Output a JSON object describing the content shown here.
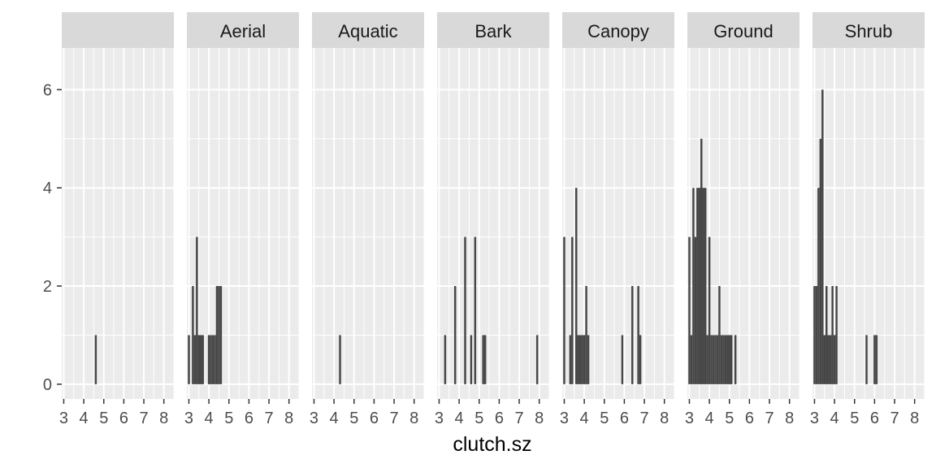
{
  "chart_data": {
    "type": "bar",
    "subtype": "faceted-histogram",
    "title": "",
    "xlabel": "clutch.sz",
    "ylabel": "",
    "xlim": [
      2.9,
      8.5
    ],
    "ylim": [
      -0.3,
      6.85
    ],
    "x_ticks": [
      3,
      4,
      5,
      6,
      7,
      8
    ],
    "y_ticks": [
      0,
      2,
      4,
      6
    ],
    "bin_width": 0.1,
    "bar_color": "#474747",
    "panel_background": "#ebebeb",
    "strip_background": "#d9d9d9",
    "grid": true,
    "legend": "none",
    "facets": [
      {
        "label": "",
        "bars": [
          {
            "x": 4.6,
            "count": 1
          }
        ]
      },
      {
        "label": "Aerial",
        "bars": [
          {
            "x": 3.0,
            "count": 1
          },
          {
            "x": 3.2,
            "count": 2
          },
          {
            "x": 3.3,
            "count": 1
          },
          {
            "x": 3.4,
            "count": 3
          },
          {
            "x": 3.5,
            "count": 1
          },
          {
            "x": 3.6,
            "count": 1
          },
          {
            "x": 3.7,
            "count": 1
          },
          {
            "x": 4.0,
            "count": 1
          },
          {
            "x": 4.1,
            "count": 1
          },
          {
            "x": 4.2,
            "count": 1
          },
          {
            "x": 4.3,
            "count": 1
          },
          {
            "x": 4.4,
            "count": 2
          },
          {
            "x": 4.5,
            "count": 2
          },
          {
            "x": 4.6,
            "count": 2
          }
        ]
      },
      {
        "label": "Aquatic",
        "bars": [
          {
            "x": 4.3,
            "count": 1
          }
        ]
      },
      {
        "label": "Bark",
        "bars": [
          {
            "x": 3.3,
            "count": 1
          },
          {
            "x": 3.8,
            "count": 2
          },
          {
            "x": 4.3,
            "count": 3
          },
          {
            "x": 4.6,
            "count": 1
          },
          {
            "x": 4.8,
            "count": 3
          },
          {
            "x": 5.2,
            "count": 1
          },
          {
            "x": 5.3,
            "count": 1
          },
          {
            "x": 7.9,
            "count": 1
          }
        ]
      },
      {
        "label": "Canopy",
        "bars": [
          {
            "x": 3.0,
            "count": 3
          },
          {
            "x": 3.3,
            "count": 1
          },
          {
            "x": 3.4,
            "count": 3
          },
          {
            "x": 3.6,
            "count": 4
          },
          {
            "x": 3.7,
            "count": 1
          },
          {
            "x": 3.8,
            "count": 1
          },
          {
            "x": 3.9,
            "count": 1
          },
          {
            "x": 4.0,
            "count": 1
          },
          {
            "x": 4.1,
            "count": 2
          },
          {
            "x": 4.2,
            "count": 1
          },
          {
            "x": 5.9,
            "count": 1
          },
          {
            "x": 6.4,
            "count": 2
          },
          {
            "x": 6.7,
            "count": 2
          },
          {
            "x": 6.8,
            "count": 1
          }
        ]
      },
      {
        "label": "Ground",
        "bars": [
          {
            "x": 3.0,
            "count": 3
          },
          {
            "x": 3.1,
            "count": 1
          },
          {
            "x": 3.2,
            "count": 4
          },
          {
            "x": 3.3,
            "count": 3
          },
          {
            "x": 3.4,
            "count": 4
          },
          {
            "x": 3.5,
            "count": 4
          },
          {
            "x": 3.6,
            "count": 5
          },
          {
            "x": 3.7,
            "count": 4
          },
          {
            "x": 3.8,
            "count": 4
          },
          {
            "x": 3.9,
            "count": 1
          },
          {
            "x": 4.0,
            "count": 3
          },
          {
            "x": 4.1,
            "count": 1
          },
          {
            "x": 4.2,
            "count": 1
          },
          {
            "x": 4.3,
            "count": 1
          },
          {
            "x": 4.4,
            "count": 1
          },
          {
            "x": 4.5,
            "count": 2
          },
          {
            "x": 4.6,
            "count": 1
          },
          {
            "x": 4.7,
            "count": 1
          },
          {
            "x": 4.8,
            "count": 1
          },
          {
            "x": 4.9,
            "count": 1
          },
          {
            "x": 5.0,
            "count": 1
          },
          {
            "x": 5.1,
            "count": 1
          },
          {
            "x": 5.3,
            "count": 1
          }
        ]
      },
      {
        "label": "Shrub",
        "bars": [
          {
            "x": 3.0,
            "count": 2
          },
          {
            "x": 3.1,
            "count": 2
          },
          {
            "x": 3.2,
            "count": 4
          },
          {
            "x": 3.3,
            "count": 5
          },
          {
            "x": 3.4,
            "count": 6
          },
          {
            "x": 3.5,
            "count": 1
          },
          {
            "x": 3.6,
            "count": 2
          },
          {
            "x": 3.7,
            "count": 1
          },
          {
            "x": 3.8,
            "count": 1
          },
          {
            "x": 3.9,
            "count": 2
          },
          {
            "x": 4.0,
            "count": 1
          },
          {
            "x": 4.1,
            "count": 2
          },
          {
            "x": 5.6,
            "count": 1
          },
          {
            "x": 6.0,
            "count": 1
          },
          {
            "x": 6.1,
            "count": 1
          }
        ]
      }
    ]
  }
}
